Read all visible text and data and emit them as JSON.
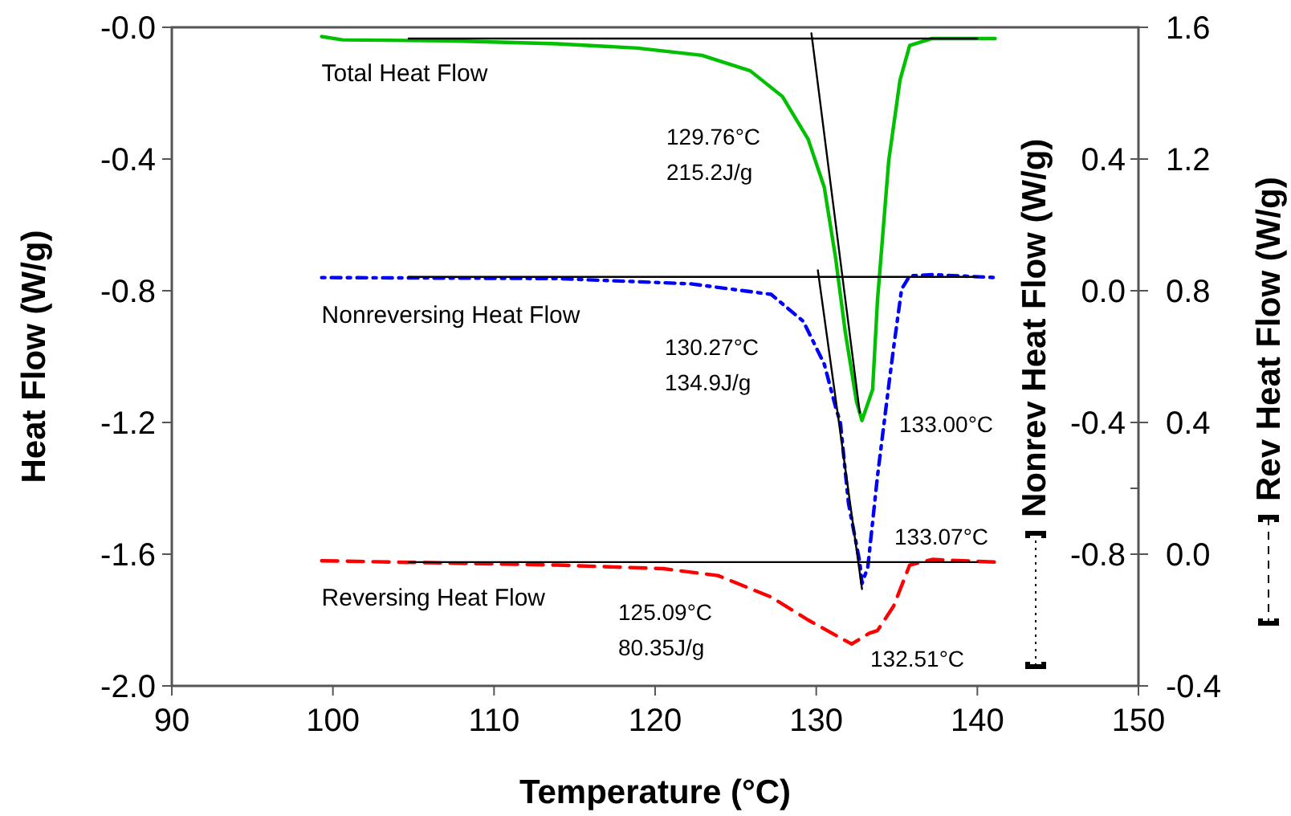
{
  "chart_data": {
    "type": "line",
    "xlabel": "Temperature (°C)",
    "ylabel": "Heat Flow (W/g)",
    "y2label": "Nonrev Heat Flow (W/g)",
    "y3label": "Rev Heat Flow (W/g)",
    "xlim": [
      90,
      150
    ],
    "xticks": [
      90,
      100,
      110,
      120,
      130,
      140,
      150
    ],
    "ylim": [
      -2,
      0
    ],
    "yticks": [
      {
        "value": 0,
        "label": "-0.0"
      },
      {
        "value": -0.4,
        "label": "-0.4"
      },
      {
        "value": -0.8,
        "label": "-0.8"
      },
      {
        "value": -1.2,
        "label": "-1.2"
      },
      {
        "value": -1.6,
        "label": "-1.6"
      },
      {
        "value": -2,
        "label": "-2.0"
      }
    ],
    "y2lim": [
      -1.2,
      0.8
    ],
    "y2ticks": [
      {
        "value": 0.4,
        "label": "0.4"
      },
      {
        "value": 0,
        "label": "0.0"
      },
      {
        "value": -0.4,
        "label": "-0.4"
      },
      {
        "value": -0.6,
        "label": null
      },
      {
        "value": -0.8,
        "label": "-0.8"
      }
    ],
    "y3lim": [
      -0.4,
      1.6
    ],
    "y3ticks": [
      {
        "value": 1.6,
        "label": "1.6"
      },
      {
        "value": 1.2,
        "label": "1.2"
      },
      {
        "value": 0.8,
        "label": "0.8"
      },
      {
        "value": 0.4,
        "label": "0.4"
      },
      {
        "value": 0,
        "label": "0.0"
      },
      {
        "value": -0.4,
        "label": "-0.4"
      }
    ],
    "grid": false,
    "marker": "none",
    "series": [
      {
        "name": "Total Heat Flow",
        "color": "#00c000",
        "line_style": "solid",
        "x": [
          99.3,
          100.6,
          107.2,
          113.9,
          118.9,
          122.9,
          125.9,
          127.9,
          129.5,
          130.5,
          131.2,
          131.8,
          132.5,
          132.84,
          133.5,
          133.8,
          134.5,
          135.2,
          135.8,
          137.2,
          141.1
        ],
        "values": [
          -0.028,
          -0.038,
          -0.041,
          -0.05,
          -0.063,
          -0.085,
          -0.132,
          -0.21,
          -0.34,
          -0.486,
          -0.7,
          -0.925,
          -1.137,
          -1.194,
          -1.1,
          -0.83,
          -0.405,
          -0.16,
          -0.055,
          -0.034,
          -0.034
        ]
      },
      {
        "name": "Nonreversing Heat Flow",
        "color": "#0000ff",
        "line_style": "dotted",
        "axis": "y2",
        "x": [
          99.3,
          113.9,
          122.2,
          127.2,
          129.2,
          130.5,
          131.2,
          131.5,
          132,
          132.7,
          132.84,
          133.2,
          133.8,
          134.5,
          134.8,
          135.3,
          135.8,
          137.2,
          141.1
        ],
        "values": [
          0.04,
          0.037,
          0.021,
          -0.011,
          -0.093,
          -0.223,
          -0.353,
          -0.401,
          -0.645,
          -0.824,
          -0.889,
          -0.84,
          -0.564,
          -0.288,
          -0.174,
          0.005,
          0.045,
          0.049,
          0.04
        ]
      },
      {
        "name": "Reversing Heat Flow",
        "color": "#ff0000",
        "line_style": "dashed",
        "axis": "y3",
        "x": [
          99.3,
          113.9,
          120.5,
          123.9,
          127.2,
          129.5,
          132.2,
          133.3,
          133.8,
          134.8,
          135.8,
          137.2,
          141.1
        ],
        "values": [
          -0.02,
          -0.033,
          -0.044,
          -0.065,
          -0.13,
          -0.2,
          -0.273,
          -0.24,
          -0.232,
          -0.158,
          -0.033,
          -0.016,
          -0.024
        ]
      },
      {
        "color": "#000000",
        "line_style": "solid",
        "x": [
          104.7,
          140
        ],
        "values": [
          -0.034,
          -0.034
        ]
      },
      {
        "color": "#000000",
        "line_style": "solid",
        "x": [
          129.7,
          132.7
        ],
        "values": [
          -0.018,
          -1.17
        ]
      },
      {
        "color": "#000000",
        "line_style": "solid",
        "axis": "y2",
        "x": [
          104.7,
          140
        ],
        "values": [
          0.042,
          0.042
        ]
      },
      {
        "color": "#000000",
        "line_style": "solid",
        "axis": "y2",
        "x": [
          130.1,
          132.84
        ],
        "values": [
          0.062,
          -0.906
        ]
      },
      {
        "color": "#000000",
        "line_style": "solid",
        "axis": "y3",
        "x": [
          104.7,
          140
        ],
        "values": [
          -0.024,
          -0.024
        ]
      }
    ],
    "annotations": [
      "129.76°C",
      "215.2J/g",
      "130.27°C",
      "134.9J/g",
      "133.00°C",
      "133.07°C",
      "125.09°C",
      "80.35J/g",
      "132.51°C"
    ]
  }
}
